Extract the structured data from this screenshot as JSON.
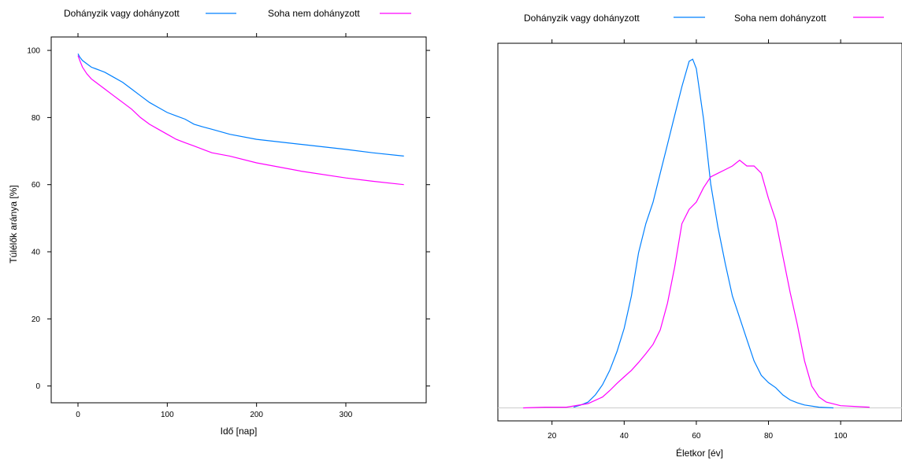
{
  "colors": {
    "smoker": "#0080ff",
    "never": "#ff00ff",
    "baseline": "#cccccc"
  },
  "chart_data": [
    {
      "type": "line",
      "xlabel": "Idő [nap]",
      "ylabel": "Túlélők aránya [%]",
      "xlim": [
        -30,
        390
      ],
      "ylim": [
        -5,
        104
      ],
      "xticks": [
        0,
        100,
        200,
        300
      ],
      "yticks": [
        0,
        20,
        40,
        60,
        80,
        100
      ],
      "legend_position": "top",
      "series": [
        {
          "name": "Dohányzik vagy dohányzott",
          "color_key": "smoker",
          "x": [
            0,
            2,
            5,
            10,
            15,
            20,
            30,
            40,
            50,
            60,
            70,
            80,
            90,
            100,
            110,
            120,
            130,
            140,
            150,
            170,
            200,
            250,
            300,
            330,
            365
          ],
          "y": [
            99,
            98,
            97,
            96,
            95,
            94.5,
            93.5,
            92,
            90.5,
            88.5,
            86.5,
            84.5,
            83,
            81.5,
            80.5,
            79.5,
            78,
            77.2,
            76.5,
            75,
            73.5,
            72,
            70.5,
            69.5,
            68.5
          ]
        },
        {
          "name": "Soha nem dohányzott",
          "color_key": "never",
          "x": [
            0,
            2,
            5,
            10,
            15,
            20,
            30,
            40,
            50,
            60,
            70,
            80,
            90,
            100,
            110,
            120,
            130,
            140,
            150,
            170,
            200,
            250,
            300,
            330,
            365
          ],
          "y": [
            98.5,
            97,
            95,
            93,
            91.5,
            90.5,
            88.5,
            86.5,
            84.5,
            82.5,
            80,
            78,
            76.5,
            75,
            73.5,
            72.5,
            71.5,
            70.5,
            69.5,
            68.5,
            66.5,
            64,
            62,
            61,
            60
          ]
        }
      ]
    },
    {
      "type": "line",
      "xlabel": "Életkor [év]",
      "ylabel": "",
      "xlim": [
        5,
        117
      ],
      "ylim": [
        -0.0018,
        0.0505
      ],
      "xticks": [
        20,
        40,
        60,
        80,
        100
      ],
      "legend_position": "top",
      "series": [
        {
          "name": "Dohányzik vagy dohányzott",
          "color_key": "smoker",
          "x": [
            26,
            28,
            30,
            32,
            34,
            36,
            38,
            40,
            42,
            44,
            46,
            48,
            50,
            52,
            54,
            56,
            58,
            59,
            60,
            62,
            64,
            66,
            68,
            70,
            72,
            74,
            76,
            78,
            80,
            82,
            84,
            86,
            88,
            90,
            94,
            98
          ],
          "y": [
            0.0001,
            0.0004,
            0.0008,
            0.0018,
            0.0032,
            0.0052,
            0.0078,
            0.011,
            0.0155,
            0.0215,
            0.0255,
            0.0285,
            0.0325,
            0.0365,
            0.0405,
            0.0445,
            0.048,
            0.0483,
            0.047,
            0.04,
            0.031,
            0.025,
            0.02,
            0.0155,
            0.0125,
            0.0095,
            0.0065,
            0.0045,
            0.0035,
            0.0028,
            0.0018,
            0.0011,
            0.0007,
            0.0004,
            0.0001,
            0.0
          ]
        },
        {
          "name": "Soha nem dohányzott",
          "color_key": "never",
          "x": [
            12,
            18,
            24,
            30,
            34,
            36,
            38,
            40,
            42,
            44,
            46,
            48,
            50,
            52,
            54,
            56,
            58,
            60,
            62,
            64,
            66,
            68,
            70,
            72,
            74,
            76,
            78,
            80,
            82,
            84,
            86,
            88,
            90,
            92,
            94,
            96,
            100,
            108
          ],
          "y": [
            0.0,
            0.0001,
            0.0001,
            0.0006,
            0.0015,
            0.0024,
            0.0034,
            0.0043,
            0.0052,
            0.0063,
            0.0075,
            0.0088,
            0.0108,
            0.0145,
            0.0195,
            0.0255,
            0.0275,
            0.0285,
            0.0305,
            0.032,
            0.0325,
            0.033,
            0.0335,
            0.0343,
            0.0335,
            0.0335,
            0.0325,
            0.029,
            0.026,
            0.021,
            0.016,
            0.0115,
            0.0065,
            0.003,
            0.0015,
            0.0008,
            0.0003,
            0.0001
          ]
        }
      ]
    }
  ]
}
